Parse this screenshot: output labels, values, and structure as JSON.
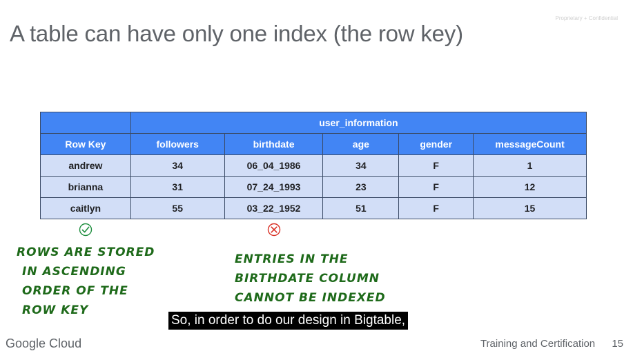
{
  "proprietary_note": "Proprietary + Confidential",
  "title": "A table can have only one index (the row key)",
  "table": {
    "group_header": "user_information",
    "columns": [
      "Row Key",
      "followers",
      "birthdate",
      "age",
      "gender",
      "messageCount"
    ],
    "rows": [
      [
        "andrew",
        "34",
        "06_04_1986",
        "34",
        "F",
        "1"
      ],
      [
        "brianna",
        "31",
        "07_24_1993",
        "23",
        "F",
        "12"
      ],
      [
        "caitlyn",
        "55",
        "03_22_1952",
        "51",
        "F",
        "15"
      ]
    ]
  },
  "annotations": {
    "row_key": {
      "icon": "check-circle-icon",
      "color": "#1e8e3e",
      "lines": [
        "Rows are stored",
        "in ascending",
        "order of the",
        "row key"
      ]
    },
    "birthdate": {
      "icon": "x-circle-icon",
      "color": "#d93025",
      "lines": [
        "Entries in the",
        "birthdate column",
        "cannot be indexed"
      ]
    }
  },
  "caption": "So, in order to do our design in Bigtable,",
  "footer": {
    "logo_text": "Google Cloud",
    "right_text": "Training and Certification",
    "page_number": "15"
  }
}
